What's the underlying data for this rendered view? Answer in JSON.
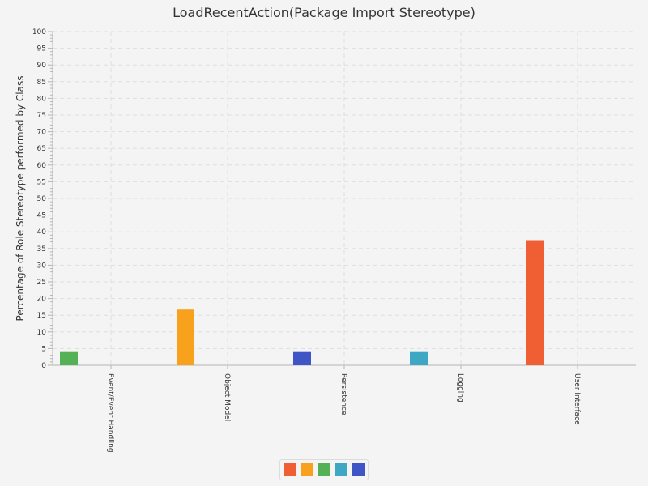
{
  "chart_data": {
    "type": "bar",
    "title": "LoadRecentAction(Package Import Stereotype)",
    "ylabel": "Percentage of Role Stereotype performed by Class",
    "xlabel": "",
    "ylim": [
      0,
      100
    ],
    "y_major_ticks": [
      0,
      5,
      10,
      15,
      20,
      25,
      30,
      35,
      40,
      45,
      50,
      55,
      60,
      65,
      70,
      75,
      80,
      85,
      90,
      95,
      100
    ],
    "grid": true,
    "categories": [
      "Event/Event Handling",
      "Object Model",
      "Persistence",
      "Logging",
      "User Interface"
    ],
    "series": [
      {
        "color": "#f05f33",
        "values": [
          0,
          0,
          0,
          0,
          37.5
        ]
      },
      {
        "color": "#f8a11c",
        "values": [
          0,
          16.7,
          0,
          0,
          0
        ]
      },
      {
        "color": "#55b155",
        "values": [
          4.2,
          0,
          0,
          0,
          0
        ]
      },
      {
        "color": "#3da7c4",
        "values": [
          0,
          0,
          0,
          4.2,
          0
        ]
      },
      {
        "color": "#3f55c6",
        "values": [
          0,
          0,
          4.2,
          0,
          0
        ]
      }
    ],
    "bar_colors": [
      "#55b155",
      "#f8a11c",
      "#3f55c6",
      "#3da7c4",
      "#f05f33"
    ],
    "bar_values": [
      4.2,
      16.7,
      4.2,
      4.2,
      37.5
    ],
    "legend": {
      "placement": "bottom-center",
      "swatches": [
        "#f05f33",
        "#f8a11c",
        "#55b155",
        "#3da7c4",
        "#3f55c6"
      ]
    }
  }
}
